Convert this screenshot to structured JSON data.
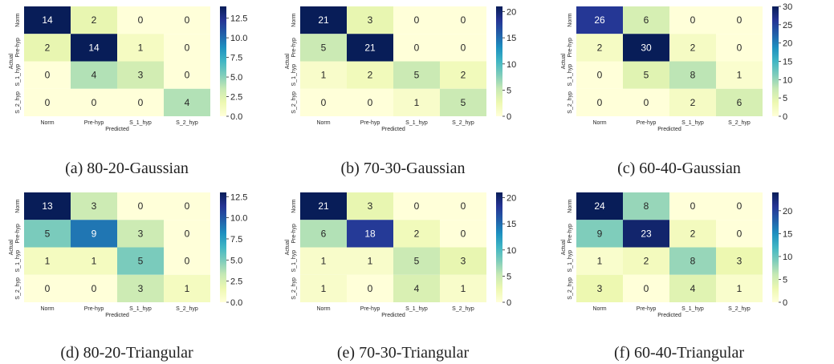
{
  "chart_data": [
    {
      "type": "heatmap",
      "caption": "(a) 80-20-Gaussian",
      "x_categories": [
        "Norm",
        "Pre-hyp",
        "S_1_hyp",
        "S_2_hyp"
      ],
      "y_categories": [
        "Norm",
        "Pre-hyp",
        "S_1_hyp",
        "S_2_hyp"
      ],
      "values": [
        [
          14,
          2,
          0,
          0
        ],
        [
          2,
          14,
          1,
          0
        ],
        [
          0,
          4,
          3,
          0
        ],
        [
          0,
          0,
          0,
          4
        ]
      ],
      "xlabel": "Predicted",
      "ylabel": "Actual",
      "vmin": 0,
      "vmax": 14,
      "colorbar_ticks": [
        "0.0",
        "2.5",
        "5.0",
        "7.5",
        "10.0",
        "12.5"
      ],
      "colorbar_values": [
        0,
        2.5,
        5,
        7.5,
        10,
        12.5
      ]
    },
    {
      "type": "heatmap",
      "caption": "(b) 70-30-Gaussian",
      "x_categories": [
        "Norm",
        "Pre-hyp",
        "S_1_hyp",
        "S_2_hyp"
      ],
      "y_categories": [
        "Norm",
        "Pre-hyp",
        "S_1_hyp",
        "S_2_hyp"
      ],
      "values": [
        [
          21,
          3,
          0,
          0
        ],
        [
          5,
          21,
          0,
          0
        ],
        [
          1,
          2,
          5,
          2
        ],
        [
          0,
          0,
          1,
          5
        ]
      ],
      "xlabel": "Predicted",
      "ylabel": "Actual",
      "vmin": 0,
      "vmax": 21,
      "colorbar_ticks": [
        "0",
        "5",
        "10",
        "15",
        "20"
      ],
      "colorbar_values": [
        0,
        5,
        10,
        15,
        20
      ]
    },
    {
      "type": "heatmap",
      "caption": "(c) 60-40-Gaussian",
      "x_categories": [
        "Norm",
        "Pre-hyp",
        "S_1_hyp",
        "S_2_hyp"
      ],
      "y_categories": [
        "Norm",
        "Pre-hyp",
        "S_1_hyp",
        "S_2_hyp"
      ],
      "values": [
        [
          26,
          6,
          0,
          0
        ],
        [
          2,
          30,
          2,
          0
        ],
        [
          0,
          5,
          8,
          1
        ],
        [
          0,
          0,
          2,
          6
        ]
      ],
      "xlabel": "Predicted",
      "ylabel": "Actual",
      "vmin": 0,
      "vmax": 30,
      "colorbar_ticks": [
        "0",
        "5",
        "10",
        "15",
        "20",
        "25",
        "30"
      ],
      "colorbar_values": [
        0,
        5,
        10,
        15,
        20,
        25,
        30
      ]
    },
    {
      "type": "heatmap",
      "caption": "(d) 80-20-Triangular",
      "x_categories": [
        "Norm",
        "Pre-hyp",
        "S_1_hyp",
        "S_2_hyp"
      ],
      "y_categories": [
        "Norm",
        "Pre-hyp",
        "S_1_hyp",
        "S_2_hyp"
      ],
      "values": [
        [
          13,
          3,
          0,
          0
        ],
        [
          5,
          9,
          3,
          0
        ],
        [
          1,
          1,
          5,
          0
        ],
        [
          0,
          0,
          3,
          1
        ]
      ],
      "xlabel": "Predicted",
      "ylabel": "Actual",
      "vmin": 0,
      "vmax": 13,
      "colorbar_ticks": [
        "0.0",
        "2.5",
        "5.0",
        "7.5",
        "10.0",
        "12.5"
      ],
      "colorbar_values": [
        0,
        2.5,
        5,
        7.5,
        10,
        12.5
      ]
    },
    {
      "type": "heatmap",
      "caption": "(e) 70-30-Triangular",
      "x_categories": [
        "Norm",
        "Pre-hyp",
        "S_1_hyp",
        "S_2_hyp"
      ],
      "y_categories": [
        "Norm",
        "Pre-hyp",
        "S_1_hyp",
        "S_2_hyp"
      ],
      "values": [
        [
          21,
          3,
          0,
          0
        ],
        [
          6,
          18,
          2,
          0
        ],
        [
          1,
          1,
          5,
          3
        ],
        [
          1,
          0,
          4,
          1
        ]
      ],
      "xlabel": "Predicted",
      "ylabel": "Actual",
      "vmin": 0,
      "vmax": 21,
      "colorbar_ticks": [
        "0",
        "5",
        "10",
        "15",
        "20"
      ],
      "colorbar_values": [
        0,
        5,
        10,
        15,
        20
      ]
    },
    {
      "type": "heatmap",
      "caption": "(f) 60-40-Triangular",
      "x_categories": [
        "Norm",
        "Pre-hyp",
        "S_1_hyp",
        "S_2_hyp"
      ],
      "y_categories": [
        "Norm",
        "Pre-hyp",
        "S_1_hyp",
        "S_2_hyp"
      ],
      "values": [
        [
          24,
          8,
          0,
          0
        ],
        [
          9,
          23,
          2,
          0
        ],
        [
          1,
          2,
          8,
          3
        ],
        [
          3,
          0,
          4,
          1
        ]
      ],
      "xlabel": "Predicted",
      "ylabel": "Actual",
      "vmin": 0,
      "vmax": 24,
      "colorbar_ticks": [
        "0",
        "5",
        "10",
        "15",
        "20"
      ],
      "colorbar_values": [
        0,
        5,
        10,
        15,
        20
      ]
    }
  ],
  "colormap": [
    "#ffffd9",
    "#edf8b1",
    "#c7e9b4",
    "#7fcdbb",
    "#41b6c4",
    "#1d91c0",
    "#225ea8",
    "#253494",
    "#081d58"
  ]
}
